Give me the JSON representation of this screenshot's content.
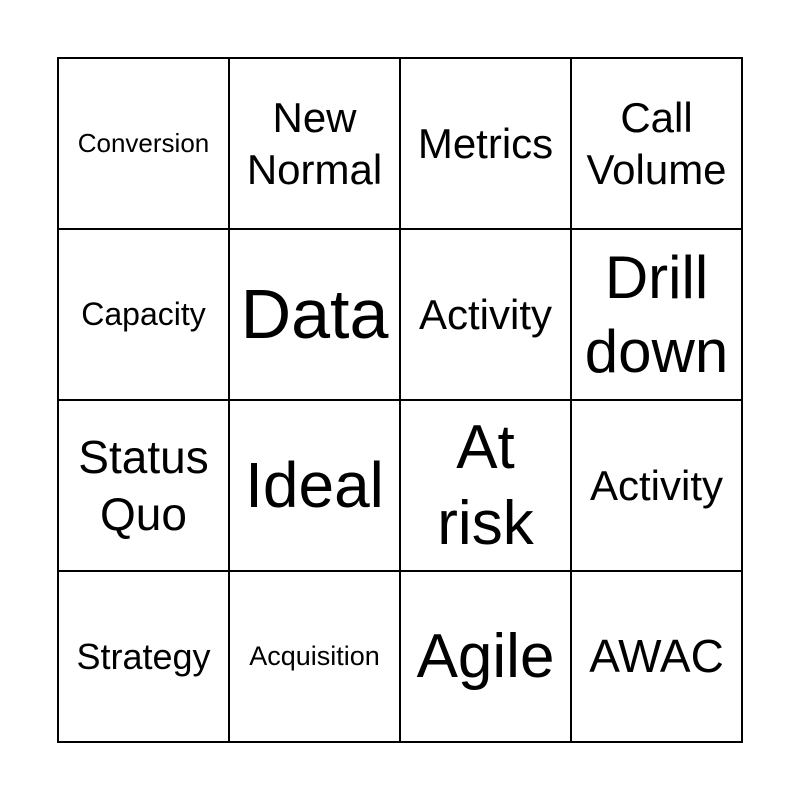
{
  "cells": [
    {
      "text": "Conversion",
      "size": 26
    },
    {
      "text": "New Normal",
      "size": 42
    },
    {
      "text": "Metrics",
      "size": 42
    },
    {
      "text": "Call Volume",
      "size": 42
    },
    {
      "text": "Capacity",
      "size": 32
    },
    {
      "text": "Data",
      "size": 70
    },
    {
      "text": "Activity",
      "size": 42
    },
    {
      "text": "Drill down",
      "size": 60
    },
    {
      "text": "Status Quo",
      "size": 46
    },
    {
      "text": "Ideal",
      "size": 64
    },
    {
      "text": "At risk",
      "size": 62
    },
    {
      "text": "Activity",
      "size": 42
    },
    {
      "text": "Strategy",
      "size": 36
    },
    {
      "text": "Acquisition",
      "size": 27
    },
    {
      "text": "Agile",
      "size": 62
    },
    {
      "text": "AWAC",
      "size": 46
    }
  ]
}
